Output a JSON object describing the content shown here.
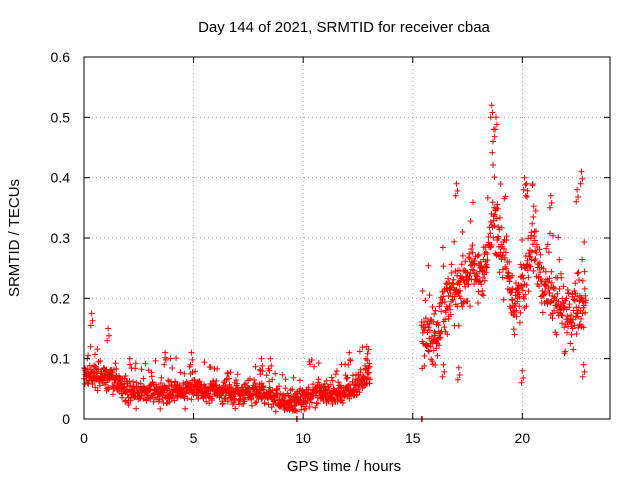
{
  "chart_data": {
    "type": "scatter",
    "title": "Day 144 of 2021, SRMTID for receiver cbaa",
    "xlabel": "GPS time / hours",
    "ylabel": "SRMTID / TECUs",
    "xlim": [
      0,
      24
    ],
    "ylim": [
      0,
      0.6
    ],
    "xticks": [
      0,
      5,
      10,
      15,
      20
    ],
    "yticks": [
      0,
      0.1,
      0.2,
      0.3,
      0.4,
      0.5,
      0.6
    ],
    "xtick_labels": [
      "0",
      "5",
      "10",
      "15",
      "20"
    ],
    "ytick_labels": [
      "0",
      "0.1",
      "0.2",
      "0.3",
      "0.4",
      "0.5",
      "0.6"
    ],
    "grid": true,
    "marker": "+",
    "color": "#ff0000",
    "series": [
      {
        "name": "SRMTID",
        "segments": [
          {
            "x_start": 0.0,
            "x_end": 13.05,
            "trend": [
              [
                0.0,
                0.07
              ],
              [
                0.5,
                0.075
              ],
              [
                1.2,
                0.07
              ],
              [
                2.0,
                0.05
              ],
              [
                3.0,
                0.045
              ],
              [
                5.0,
                0.05
              ],
              [
                6.0,
                0.045
              ],
              [
                8.0,
                0.045
              ],
              [
                9.5,
                0.025
              ],
              [
                10.5,
                0.045
              ],
              [
                11.5,
                0.04
              ],
              [
                12.5,
                0.055
              ],
              [
                13.0,
                0.08
              ]
            ],
            "spread": 0.025,
            "extremes": [
              [
                0.35,
                0.175
              ],
              [
                1.1,
                0.15
              ],
              [
                3.7,
                0.11
              ],
              [
                4.9,
                0.11
              ],
              [
                8.1,
                0.1
              ],
              [
                8.5,
                0.1
              ],
              [
                12.1,
                0.11
              ],
              [
                12.9,
                0.12
              ]
            ]
          },
          {
            "x_start": 15.4,
            "x_end": 22.9,
            "trend": [
              [
                15.4,
                0.13
              ],
              [
                16.0,
                0.14
              ],
              [
                16.6,
                0.2
              ],
              [
                17.2,
                0.22
              ],
              [
                17.8,
                0.25
              ],
              [
                18.3,
                0.24
              ],
              [
                18.7,
                0.33
              ],
              [
                19.2,
                0.27
              ],
              [
                19.6,
                0.18
              ],
              [
                20.1,
                0.24
              ],
              [
                20.5,
                0.28
              ],
              [
                21.0,
                0.22
              ],
              [
                21.6,
                0.19
              ],
              [
                22.2,
                0.17
              ],
              [
                22.8,
                0.19
              ]
            ],
            "spread": 0.06,
            "extremes": [
              [
                18.6,
                0.52
              ],
              [
                18.8,
                0.5
              ],
              [
                18.7,
                0.48
              ],
              [
                17.0,
                0.39
              ],
              [
                20.1,
                0.4
              ],
              [
                20.2,
                0.39
              ],
              [
                22.7,
                0.41
              ],
              [
                22.5,
                0.38
              ],
              [
                21.3,
                0.37
              ],
              [
                16.4,
                0.09
              ],
              [
                17.1,
                0.085
              ],
              [
                20.0,
                0.08
              ],
              [
                22.8,
                0.09
              ]
            ]
          }
        ],
        "isolated_points": [
          [
            9.7,
            0.0
          ],
          [
            15.4,
            0.0
          ]
        ]
      }
    ]
  }
}
